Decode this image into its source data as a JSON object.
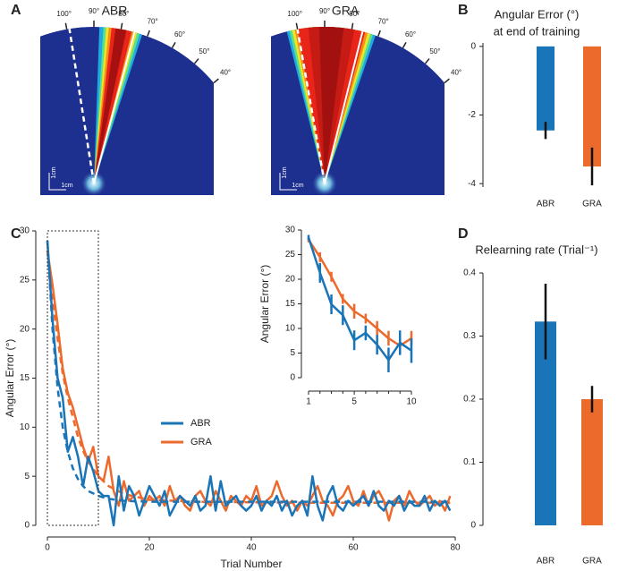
{
  "panel_labels": [
    "A",
    "B",
    "C",
    "D"
  ],
  "panel_a": [
    {
      "title": "ABR",
      "angles": [
        "100°",
        "90°",
        "80°",
        "70°",
        "60°",
        "50°",
        "40°"
      ],
      "scale": [
        "1cm",
        "1cm"
      ]
    },
    {
      "title": "GRA",
      "angles": [
        "100°",
        "90°",
        "80°",
        "70°",
        "60°",
        "50°",
        "40°"
      ],
      "scale": [
        "1cm",
        "1cm"
      ]
    }
  ],
  "chart_data": [
    {
      "type": "bar",
      "title": [
        "Angular Error (°)",
        "at end of training"
      ],
      "categories": [
        "ABR",
        "GRA"
      ],
      "values": [
        -2.45,
        -3.5
      ],
      "errors": [
        0.25,
        0.55
      ],
      "colors": [
        "#1a74b8",
        "#ec6a2c"
      ],
      "ylim": [
        -4.1,
        0.1
      ],
      "yticks": [
        0,
        -2,
        -4
      ]
    },
    {
      "type": "line",
      "xlabel": "Trial Number",
      "ylabel": "Angular Error (°)",
      "x": [
        0,
        1,
        2,
        3,
        4,
        5,
        6,
        7,
        8,
        9,
        10,
        11,
        12,
        13,
        14,
        15,
        16,
        17,
        18,
        19,
        20,
        21,
        22,
        23,
        24,
        25,
        26,
        27,
        28,
        29,
        30,
        31,
        32,
        33,
        34,
        35,
        36,
        37,
        38,
        39,
        40,
        41,
        42,
        43,
        44,
        45,
        46,
        47,
        48,
        49,
        50,
        51,
        52,
        53,
        54,
        55,
        56,
        57,
        58,
        59,
        60,
        61,
        62,
        63,
        64,
        65,
        66,
        67,
        68,
        69,
        70,
        71,
        72,
        73,
        74,
        75,
        76,
        77,
        78,
        79
      ],
      "series": [
        {
          "name": "ABR",
          "color": "#1a74b8",
          "values": [
            29,
            21,
            15,
            13,
            7.5,
            9,
            7,
            4,
            7,
            5.5,
            3.5,
            3,
            3,
            0,
            5,
            1.5,
            4,
            3,
            1,
            2.5,
            4,
            3,
            2,
            3.5,
            1,
            2,
            3,
            2.5,
            2,
            3,
            1.5,
            2,
            5,
            1.5,
            4.5,
            2,
            2.5,
            3,
            2,
            1.5,
            2,
            3,
            1.5,
            2.5,
            2,
            3,
            1.5,
            2.5,
            1,
            2,
            2.5,
            1,
            5,
            2,
            0.5,
            3,
            4,
            2,
            1.5,
            2.5,
            2,
            2.5,
            3,
            2,
            3.5,
            2,
            1.5,
            2.5,
            2,
            3,
            1.5,
            2.5,
            2,
            2,
            3,
            1.5,
            2.5,
            2,
            2.5,
            1.5
          ],
          "fit": {
            "x": [
              0,
              1,
              2,
              3,
              4,
              5,
              6,
              7,
              8,
              10,
              12,
              15,
              20,
              30,
              50,
              79
            ],
            "values": [
              29,
              20,
              14,
              10,
              7.5,
              5.8,
              4.7,
              4,
              3.5,
              3,
              2.7,
              2.5,
              2.4,
              2.4,
              2.4,
              2.4
            ]
          }
        },
        {
          "name": "GRA",
          "color": "#ec6a2c",
          "values": [
            28,
            24.5,
            20.5,
            16,
            13.5,
            12,
            10,
            8,
            6.5,
            8,
            5,
            4.5,
            7,
            3.5,
            2,
            4.5,
            2.5,
            3,
            3.5,
            2,
            3,
            2.5,
            3,
            2,
            4,
            2.5,
            3,
            2,
            1.5,
            3,
            3.5,
            2.5,
            2,
            3.5,
            2.5,
            1.5,
            3,
            2.5,
            2,
            3,
            2.5,
            4,
            2,
            2.5,
            3,
            4.5,
            3,
            2,
            2.5,
            1.5,
            2.5,
            2,
            3,
            4,
            2.5,
            2,
            1,
            2.5,
            3,
            4,
            2.5,
            2,
            3.5,
            2,
            3,
            3.5,
            2.5,
            0.5,
            2.5,
            3,
            2,
            3.5,
            2.5,
            2,
            2.5,
            3,
            2,
            2.5,
            1.5,
            3
          ],
          "fit": {
            "x": [
              0,
              1,
              2,
              3,
              4,
              5,
              6,
              7,
              8,
              10,
              12,
              15,
              20,
              30,
              50,
              79
            ],
            "values": [
              28,
              23,
              19,
              15.5,
              13,
              11,
              9,
              7.6,
              6.5,
              5,
              4,
              3.2,
              2.6,
              2.4,
              2.3,
              2.3
            ]
          }
        }
      ],
      "xlim": [
        0,
        80
      ],
      "xticks": [
        0,
        20,
        40,
        60,
        80
      ],
      "ylim": [
        0,
        30
      ],
      "yticks": [
        0,
        5,
        10,
        15,
        20,
        25,
        30
      ]
    },
    {
      "type": "line",
      "ylabel": "Angular Error (°)",
      "x": [
        1,
        2,
        3,
        4,
        5,
        6,
        7,
        8,
        9,
        10
      ],
      "series": [
        {
          "name": "ABR",
          "color": "#1a74b8",
          "values": [
            28.5,
            21.3,
            14.9,
            12.7,
            7.6,
            9.1,
            6.7,
            3.6,
            7.1,
            5.5
          ],
          "errors": [
            0.5,
            2,
            2,
            2,
            2,
            1.5,
            2,
            2.5,
            2.5,
            2.5
          ]
        },
        {
          "name": "GRA",
          "color": "#ec6a2c",
          "values": [
            28,
            24.5,
            20.5,
            16,
            13.5,
            12,
            10,
            8,
            6.5,
            8
          ],
          "errors": [
            0.5,
            1,
            1,
            1,
            1.5,
            1,
            1.5,
            1.5,
            1.5,
            1.5
          ]
        }
      ],
      "xlim": [
        1,
        10
      ],
      "xticks": [
        1,
        5,
        10
      ],
      "xminorticks": [
        2,
        3,
        4,
        6,
        7,
        8,
        9
      ],
      "ylim": [
        0,
        30
      ],
      "yticks": [
        0,
        5,
        10,
        15,
        20,
        25,
        30
      ]
    },
    {
      "type": "bar",
      "title": [
        "Relearning rate (Trial⁻¹)"
      ],
      "categories": [
        "ABR",
        "GRA"
      ],
      "values": [
        0.323,
        0.2
      ],
      "errors": [
        0.06,
        0.021
      ],
      "colors": [
        "#1a74b8",
        "#ec6a2c"
      ],
      "ylim": [
        0,
        0.4
      ],
      "yticks": [
        0,
        0.1,
        0.2,
        0.3,
        0.4
      ]
    }
  ]
}
